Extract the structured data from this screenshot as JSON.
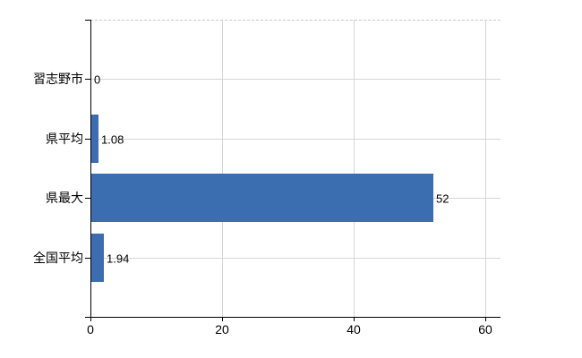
{
  "chart_data": {
    "type": "bar",
    "orientation": "horizontal",
    "title": "",
    "categories": [
      "習志野市",
      "県平均",
      "県最大",
      "全国平均"
    ],
    "values": [
      0,
      1.08,
      52,
      1.94
    ],
    "value_labels": [
      "0",
      "1.08",
      "52",
      "1.94"
    ],
    "x_ticks": [
      0,
      20,
      40,
      60
    ],
    "x_tick_labels": [
      "0",
      "20",
      "40",
      "60"
    ],
    "xlim": [
      0,
      62.3
    ],
    "grid": true,
    "legend_position": "none",
    "colors": {
      "bar": "#3b6db1",
      "axis": "#000000",
      "gridline": "#d4d7d4",
      "top_border": "#c9c9c9",
      "text": "#000000",
      "background": "#ffffff"
    }
  }
}
